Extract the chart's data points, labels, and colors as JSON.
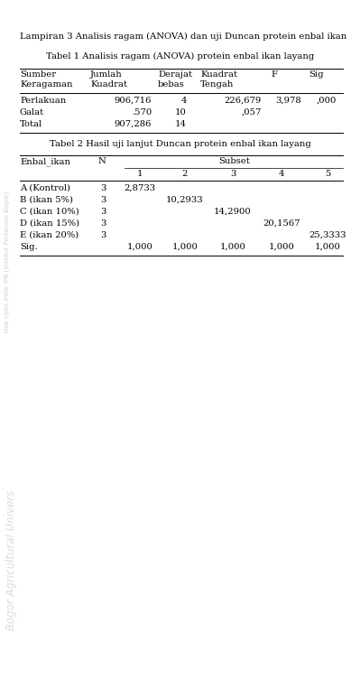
{
  "header_text": "Lampiran 3 Analisis ragam (ANOVA) dan uji Duncan protein enbal ikan",
  "table1_title": "Tabel 1 Analisis ragam (ANOVA) protein enbal ikan layang",
  "table1_rows": [
    [
      "Perlakuan",
      "906,716",
      "4",
      "226,679",
      "3,978",
      ",000"
    ],
    [
      "Galat",
      ".570",
      "10",
      ",057",
      "",
      ""
    ],
    [
      "Total",
      "907,286",
      "14",
      "",
      "",
      ""
    ]
  ],
  "table2_title": "Tabel 2 Hasil uji lanjut Duncan protein enbal ikan layang",
  "table2_col_headers_sub": [
    "1",
    "2",
    "3",
    "4",
    "5"
  ],
  "table2_rows": [
    [
      "A (Kontrol)",
      "3",
      "2,8733",
      "",
      "",
      "",
      ""
    ],
    [
      "B (ikan 5%)",
      "3",
      "",
      "10,2933",
      "",
      "",
      ""
    ],
    [
      "C (ikan 10%)",
      "3",
      "",
      "",
      "14,2900",
      "",
      ""
    ],
    [
      "D (ikan 15%)",
      "3",
      "",
      "",
      "",
      "20,1567",
      ""
    ],
    [
      "E (ikan 20%)",
      "3",
      "",
      "",
      "",
      "",
      "25,3333"
    ],
    [
      "Sig.",
      "",
      "1,000",
      "1,000",
      "1,000",
      "1,000",
      "1,000"
    ]
  ],
  "watermark1_text": "Hak cipta milik IPB (Institut Pertanian Bogor)",
  "watermark2_text": "Bogor Agricultural Univers",
  "bg_color": "#ffffff",
  "text_color": "#000000"
}
